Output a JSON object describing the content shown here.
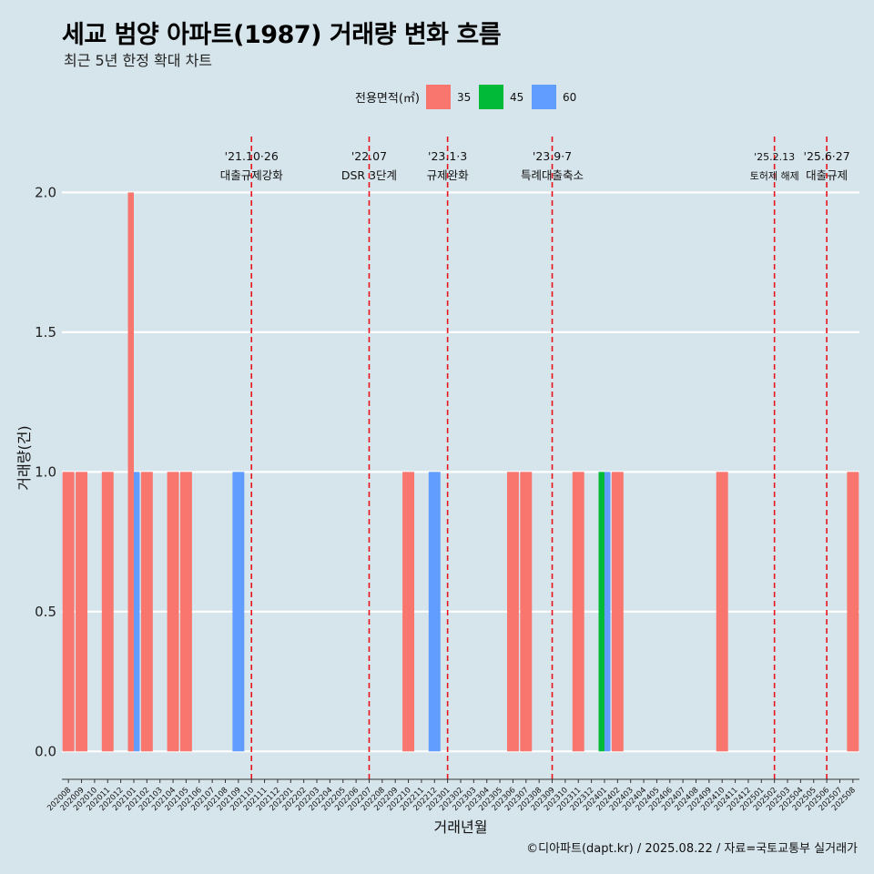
{
  "title": "세교 범양 아파트(1987) 거래량 변화 흐름",
  "subtitle": "최근 5년 한정 확대 차트",
  "caption": "©디아파트(dapt.kr) / 2025.08.22 / 자료=국토교통부 실거래가",
  "chart_data": {
    "type": "bar",
    "xlabel": "거래년월",
    "ylabel": "거래량(건)",
    "ylim": [
      -0.1,
      2.2
    ],
    "yticks": [
      "0.0",
      "0.5",
      "1.0",
      "1.5",
      "2.0"
    ],
    "yticks_values": [
      0,
      0.5,
      1.0,
      1.5,
      2.0
    ],
    "legend": {
      "title": "전용면적(㎡)",
      "position": "top",
      "items": [
        {
          "name": "35",
          "color": "#f8766d"
        },
        {
          "name": "45",
          "color": "#00ba38"
        },
        {
          "name": "60",
          "color": "#619cff"
        }
      ]
    },
    "categories": [
      "202008",
      "202009",
      "202010",
      "202011",
      "202012",
      "202101",
      "202102",
      "202103",
      "202104",
      "202105",
      "202106",
      "202107",
      "202108",
      "202109",
      "202110",
      "202111",
      "202112",
      "202201",
      "202202",
      "202203",
      "202204",
      "202205",
      "202206",
      "202207",
      "202208",
      "202209",
      "202210",
      "202211",
      "202212",
      "202301",
      "202302",
      "202303",
      "202304",
      "202305",
      "202306",
      "202307",
      "202308",
      "202309",
      "202310",
      "202311",
      "202312",
      "202401",
      "202402",
      "202403",
      "202404",
      "202405",
      "202406",
      "202407",
      "202408",
      "202409",
      "202410",
      "202411",
      "202412",
      "202501",
      "202502",
      "202503",
      "202504",
      "202505",
      "202506",
      "202507",
      "202508"
    ],
    "series": [
      {
        "name": "35",
        "color": "#f8766d",
        "values": [
          1,
          1,
          0,
          1,
          0,
          2,
          1,
          0,
          1,
          1,
          0,
          0,
          0,
          0,
          0,
          0,
          0,
          0,
          0,
          0,
          0,
          0,
          0,
          0,
          0,
          0,
          1,
          0,
          0,
          0,
          0,
          0,
          0,
          0,
          1,
          1,
          0,
          0,
          0,
          1,
          0,
          0,
          1,
          0,
          0,
          0,
          0,
          0,
          0,
          0,
          1,
          0,
          0,
          0,
          0,
          0,
          0,
          0,
          0,
          0,
          1
        ]
      },
      {
        "name": "45",
        "color": "#00ba38",
        "values": [
          0,
          0,
          0,
          0,
          0,
          0,
          0,
          0,
          0,
          0,
          0,
          0,
          0,
          0,
          0,
          0,
          0,
          0,
          0,
          0,
          0,
          0,
          0,
          0,
          0,
          0,
          0,
          0,
          0,
          0,
          0,
          0,
          0,
          0,
          0,
          0,
          0,
          0,
          0,
          0,
          0,
          1,
          0,
          0,
          0,
          0,
          0,
          0,
          0,
          0,
          0,
          0,
          0,
          0,
          0,
          0,
          0,
          0,
          0,
          0,
          0
        ]
      },
      {
        "name": "60",
        "color": "#619cff",
        "values": [
          0,
          0,
          0,
          0,
          0,
          1,
          0,
          0,
          0,
          0,
          0,
          0,
          0,
          1,
          0,
          0,
          0,
          0,
          0,
          0,
          0,
          0,
          0,
          0,
          0,
          0,
          0,
          0,
          1,
          0,
          0,
          0,
          0,
          0,
          0,
          0,
          0,
          0,
          0,
          0,
          0,
          1,
          0,
          0,
          0,
          0,
          0,
          0,
          0,
          0,
          0,
          0,
          0,
          0,
          0,
          0,
          0,
          0,
          0,
          0,
          0
        ]
      }
    ],
    "annotations": [
      {
        "at": 14.0,
        "date": "'21.10·26",
        "label": "대출규제강화",
        "small": false
      },
      {
        "at": 23.0,
        "date": "'22.07",
        "label": "DSR 3단계",
        "small": false
      },
      {
        "at": 29.0,
        "date": "'23.1·3",
        "label": "규제완화",
        "small": false
      },
      {
        "at": 37.0,
        "date": "'23.9·7",
        "label": "특례대출축소",
        "small": false
      },
      {
        "at": 54.0,
        "date": "'25.2.13",
        "label": "토허제 해제",
        "small": true
      },
      {
        "at": 58.0,
        "date": "'25.6·27",
        "label": "대출규제",
        "small": false
      }
    ]
  }
}
